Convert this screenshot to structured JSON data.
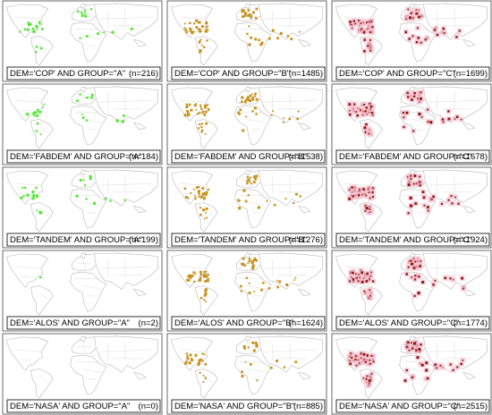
{
  "panels": [
    {
      "caption": "DEM='COP' AND GROUP=\"A\"",
      "count": "(n=216)"
    },
    {
      "caption": "DEM='COP' AND GROUP=\"B\"",
      "count": "(n=1485)"
    },
    {
      "caption": "DEM='COP' AND GROUP=\"C\"",
      "count": "(n=1699)"
    },
    {
      "caption": "DEM='FABDEM' AND GROUP=\"A\"",
      "count": "(n=184)"
    },
    {
      "caption": "DEM='FABDEM' AND GROUP=\"B\"",
      "count": "(n=1538)"
    },
    {
      "caption": "DEM='FABDEM' AND GROUP=\"C\"",
      "count": "(n=1678)"
    },
    {
      "caption": "DEM='TANDEM' AND GROUP=\"A\"",
      "count": "(n=199)"
    },
    {
      "caption": "DEM='TANDEM' AND GROUP=\"B\"",
      "count": "(n=1276)"
    },
    {
      "caption": "DEM='TANDEM' AND GROUP=\"C\"",
      "count": "(n=1924)"
    },
    {
      "caption": "DEM='ALOS' AND GROUP=\"A\"",
      "count": "(n=2)"
    },
    {
      "caption": "DEM='ALOS' AND GROUP=\"B\"",
      "count": "(n=1624)"
    },
    {
      "caption": "DEM='ALOS' AND GROUP=\"C\"",
      "count": "(n=1774)"
    },
    {
      "caption": "DEM='NASA' AND GROUP=\"A\"",
      "count": "(n=0)"
    },
    {
      "caption": "DEM='NASA' AND GROUP=\"B\"",
      "count": "(n=885)"
    },
    {
      "caption": "DEM='NASA' AND GROUP=\"C\"",
      "count": "(n=2515)"
    }
  ]
}
